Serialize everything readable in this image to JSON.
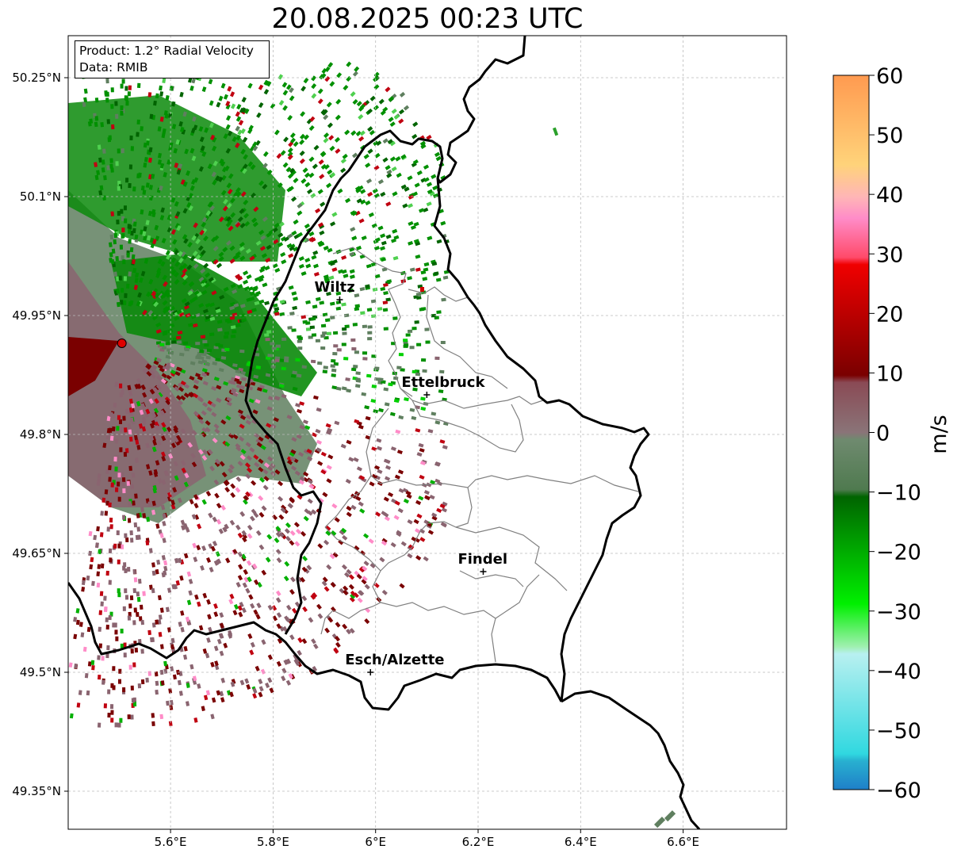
{
  "title": "20.08.2025 00:23 UTC",
  "info_box": {
    "product": "Product: 1.2° Radial Velocity",
    "data_source": "Data: RMIB"
  },
  "map": {
    "lon_range": [
      5.4,
      6.8
    ],
    "lat_range": [
      49.3,
      50.3
    ],
    "grid": true,
    "x_ticks": [
      "5.6°E",
      "5.8°E",
      "6°E",
      "6.2°E",
      "6.4°E",
      "6.6°E"
    ],
    "y_ticks": [
      "50.25°N",
      "50.1°N",
      "49.95°N",
      "49.8°N",
      "49.65°N",
      "49.5°N",
      "49.35°N"
    ],
    "radar_site": {
      "lon": 5.505,
      "lat": 49.915,
      "color": "#e00000"
    },
    "cities": [
      {
        "name": "Wiltz",
        "lon": 5.93,
        "lat": 49.97
      },
      {
        "name": "Ettelbruck",
        "lon": 6.1,
        "lat": 49.85
      },
      {
        "name": "Findel",
        "lon": 6.21,
        "lat": 49.627
      },
      {
        "name": "Esch/Alzette",
        "lon": 5.99,
        "lat": 49.5
      }
    ]
  },
  "colorbar": {
    "label": "m/s",
    "range": [
      -60,
      60
    ],
    "ticks": [
      "60",
      "50",
      "40",
      "30",
      "20",
      "10",
      "0",
      "−10",
      "−20",
      "−30",
      "−40",
      "−50",
      "−60"
    ],
    "colors": {
      "outbound_far": "#ff9a50",
      "outbound_high": "#ffd37a",
      "outbound_pink": "#ff8cc8",
      "outbound_red": "#f00000",
      "outbound_dark": "#7a0000",
      "near_zero_pos": "#8a6470",
      "near_zero_neg": "#5f7f5f",
      "inbound_dark": "#006400",
      "inbound_green": "#00e000",
      "inbound_cyan": "#40e0e0",
      "inbound_blue": "#1f7fc8"
    }
  }
}
